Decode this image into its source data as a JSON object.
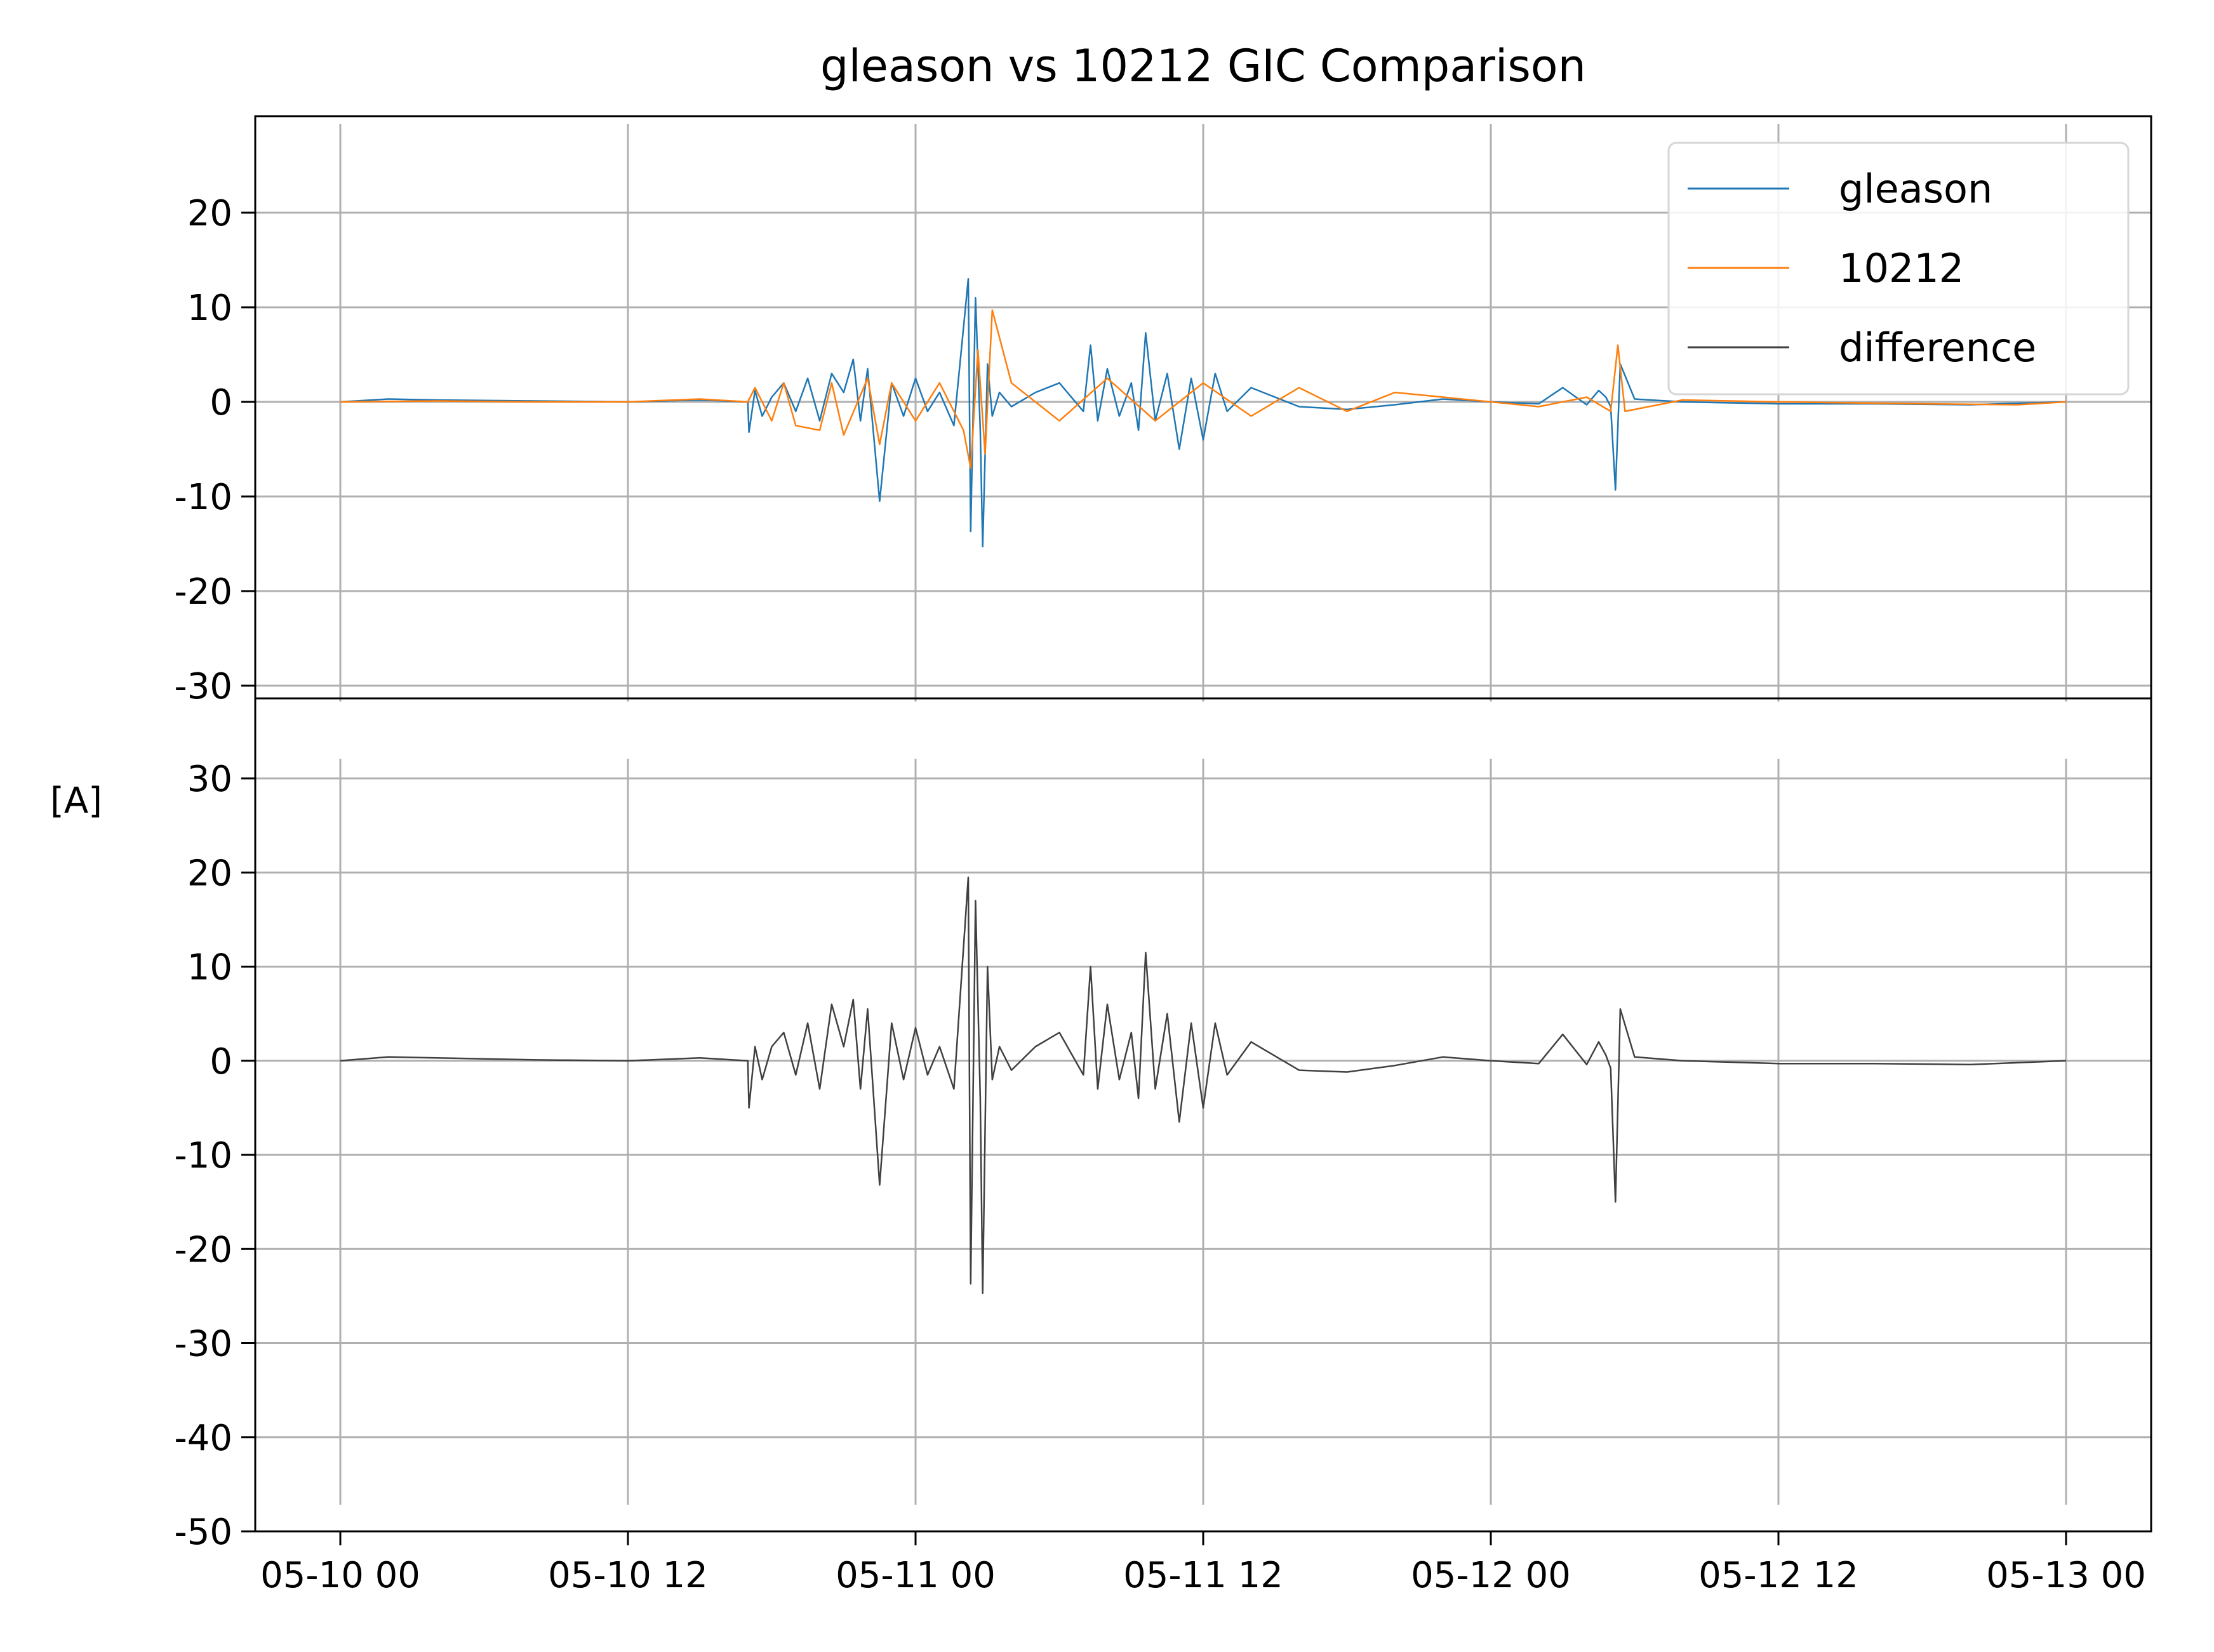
{
  "chart_data": {
    "type": "line",
    "title": "gleason vs 10212 GIC Comparison",
    "ylabel": "[A]",
    "xlabel": "",
    "grid": true,
    "legend_placement": "top-right",
    "x_range": [
      "05-10 00",
      "05-13 00"
    ],
    "x_ticks": [
      "05-10 00",
      "05-10 12",
      "05-11 00",
      "05-11 12",
      "05-12 00",
      "05-12 12",
      "05-13 00"
    ],
    "x_tick_hours": [
      0,
      12,
      24,
      36,
      48,
      60,
      72
    ],
    "panels": [
      {
        "name": "top",
        "ylim": [
          -30,
          30
        ],
        "y_ticks": [
          20,
          10,
          0,
          -10,
          -20,
          -30
        ],
        "y_tick_labels": [
          "20",
          "10",
          "0",
          "-10",
          "-20",
          "-30"
        ],
        "series": [
          {
            "name": "gleason",
            "color": "#1f77b4",
            "x": [
              0,
              2,
              4,
              8,
              12,
              15,
              17,
              17.05,
              17.3,
              17.6,
              18,
              18.5,
              19,
              19.5,
              20,
              20.5,
              21,
              21.4,
              21.7,
              22,
              22.5,
              23,
              23.5,
              24,
              24.5,
              25,
              25.6,
              26.2,
              26.3,
              26.5,
              26.7,
              26.8,
              27,
              27.2,
              27.5,
              28,
              29,
              30,
              31,
              31.3,
              31.6,
              32,
              32.5,
              33,
              33.3,
              33.6,
              34,
              34.5,
              35,
              35.5,
              36,
              36.5,
              37,
              38,
              40,
              42,
              44,
              46,
              48,
              50,
              51,
              52,
              52.5,
              52.8,
              53,
              53.2,
              53.4,
              54,
              56,
              60,
              64,
              68,
              72
            ],
            "y": [
              0,
              0.3,
              0.2,
              0.1,
              0,
              0.2,
              0,
              -3.2,
              1.2,
              -1.5,
              0.5,
              2,
              -1,
              2.5,
              -2,
              3,
              1,
              4.5,
              -2,
              3.5,
              -10.5,
              2,
              -1.5,
              2.5,
              -1,
              1,
              -2.5,
              13,
              -13.7,
              11,
              -3,
              -15.3,
              4,
              -1.5,
              1,
              -0.5,
              1,
              2,
              -1,
              6,
              -2,
              3.5,
              -1.5,
              2,
              -3,
              7.3,
              -2,
              3,
              -5,
              2.5,
              -4,
              3,
              -1,
              1.5,
              -0.5,
              -0.8,
              -0.3,
              0.3,
              0,
              -0.2,
              1.5,
              -0.3,
              1.2,
              0.5,
              -0.5,
              -9.3,
              4,
              0.3,
              0,
              -0.2,
              -0.2,
              -0.3,
              0
            ]
          },
          {
            "name": "10212",
            "color": "#ff7f0e",
            "x": [
              0,
              4,
              8,
              12,
              15,
              17,
              17.3,
              18,
              18.5,
              19,
              20,
              20.5,
              21,
              22,
              22.5,
              23,
              24,
              25,
              26,
              26.3,
              26.6,
              26.9,
              27.2,
              28,
              30,
              32,
              34,
              36,
              38,
              40,
              42,
              44,
              46,
              48,
              50,
              52,
              53,
              53.3,
              53.6,
              56,
              60,
              66,
              70,
              72
            ],
            "y": [
              0,
              0.1,
              0,
              0,
              0.3,
              0,
              1.5,
              -2,
              2,
              -2.5,
              -3,
              2,
              -3.5,
              2.5,
              -4.5,
              2,
              -2,
              2,
              -3,
              -7,
              5.5,
              -5.5,
              9.7,
              2,
              -2,
              2.5,
              -2,
              2,
              -1.5,
              1.5,
              -1,
              1,
              0.5,
              0,
              -0.5,
              0.5,
              -1,
              6,
              -1,
              0.2,
              0,
              -0.2,
              -0.3,
              0
            ]
          }
        ]
      },
      {
        "name": "bottom",
        "ylim": [
          -50,
          30
        ],
        "y_ticks": [
          30,
          20,
          10,
          0,
          -10,
          -20,
          -30,
          -40,
          -50
        ],
        "y_tick_labels": [
          "30",
          "20",
          "10",
          "0",
          "-10",
          "-20",
          "-30",
          "-40",
          "-50"
        ],
        "series": [
          {
            "name": "difference",
            "color": "#404040",
            "x": [
              0,
              2,
              4,
              8,
              12,
              15,
              17,
              17.05,
              17.3,
              17.6,
              18,
              18.5,
              19,
              19.5,
              20,
              20.5,
              21,
              21.4,
              21.7,
              22,
              22.5,
              23,
              23.5,
              24,
              24.5,
              25,
              25.6,
              26.2,
              26.3,
              26.5,
              26.7,
              26.8,
              27,
              27.2,
              27.5,
              28,
              29,
              30,
              31,
              31.3,
              31.6,
              32,
              32.5,
              33,
              33.3,
              33.6,
              34,
              34.5,
              35,
              35.5,
              36,
              36.5,
              37,
              38,
              40,
              42,
              44,
              46,
              48,
              50,
              51,
              52,
              52.5,
              52.8,
              53,
              53.2,
              53.4,
              54,
              56,
              60,
              64,
              68,
              72
            ],
            "y": [
              0,
              0.4,
              0.3,
              0.1,
              0,
              0.3,
              0,
              -5,
              1.5,
              -2,
              1.5,
              3,
              -1.5,
              4,
              -3,
              6,
              1.5,
              6.5,
              -3,
              5.5,
              -13.2,
              4,
              -2,
              3.5,
              -1.5,
              1.5,
              -3,
              19.5,
              -23.7,
              17,
              -4,
              -24.7,
              10,
              -2,
              1.5,
              -1,
              1.5,
              3,
              -1.5,
              10,
              -3,
              6,
              -2,
              3,
              -4,
              11.5,
              -3,
              5,
              -6.5,
              4,
              -5,
              4,
              -1.5,
              2,
              -1,
              -1.2,
              -0.5,
              0.4,
              0,
              -0.3,
              2.8,
              -0.4,
              2,
              0.6,
              -0.8,
              -15,
              5.5,
              0.4,
              0,
              -0.3,
              -0.3,
              -0.4,
              0
            ]
          }
        ]
      }
    ],
    "legend": [
      "gleason",
      "10212",
      "difference"
    ]
  }
}
